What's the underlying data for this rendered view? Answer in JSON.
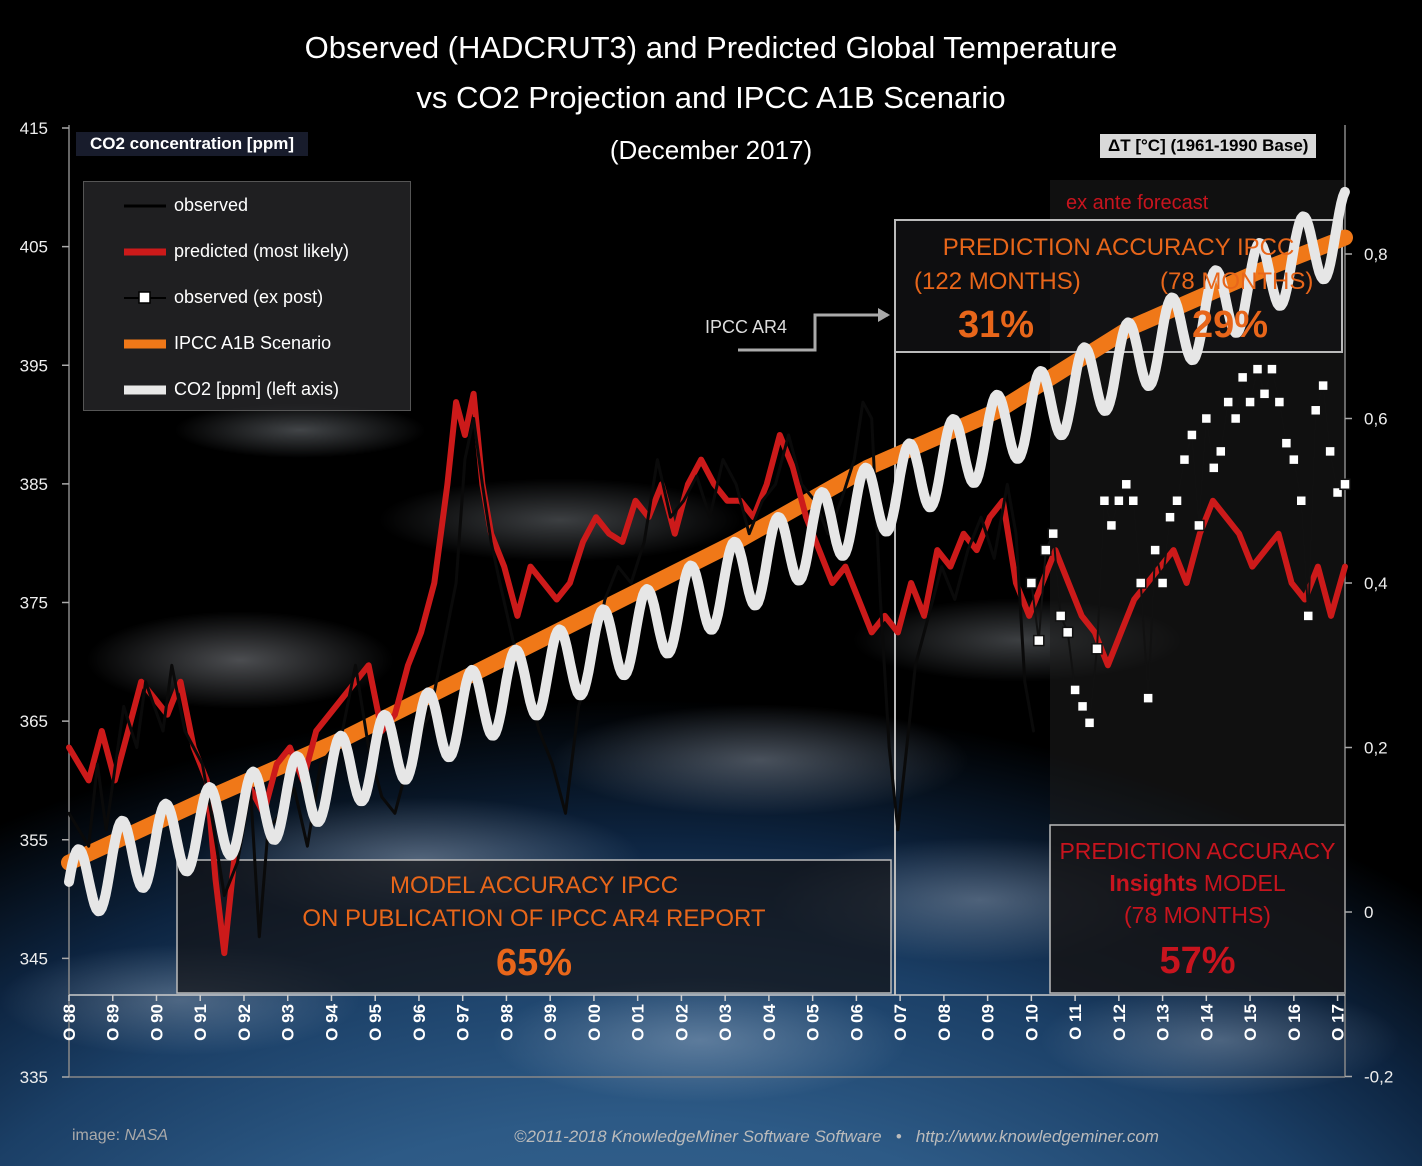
{
  "title_line1": "Observed (HADCRUT3) and Predicted Global Temperature",
  "title_line2": "vs CO2 Projection and IPCC A1B Scenario",
  "subtitle": "(December 2017)",
  "left_axis_label": "CO2 concentration [ppm]",
  "right_axis_label": "ΔT [°C] (1961-1990 Base)",
  "legend": {
    "observed": "observed",
    "predicted": "predicted (most likely)",
    "observed_ex_post": "observed (ex post)",
    "ipcc_a1b": "IPCC A1B Scenario",
    "co2": "CO2 [ppm] (left axis)"
  },
  "annotations": {
    "ipcc_ar4": "IPCC AR4",
    "ex_ante": "ex ante forecast",
    "pred_ipcc_title": "PREDICTION ACCURACY IPCC",
    "pred_ipcc_left_label": "(122 MONTHS)",
    "pred_ipcc_right_label": "(78 MONTHS)",
    "pred_ipcc_left_value": "31%",
    "pred_ipcc_right_value": "29%",
    "model_line1": "MODEL ACCURACY IPCC",
    "model_line2": "ON PUBLICATION OF IPCC AR4 REPORT",
    "model_value": "65%",
    "insights_line1": "PREDICTION ACCURACY",
    "insights_bold": "Insights",
    "insights_model": " MODEL",
    "insights_months": "(78 MONTHS)",
    "insights_value": "57%"
  },
  "footer": {
    "image_credit_prefix": "image: ",
    "image_credit": "NASA",
    "copyright": "©2011-2018 KnowledgeMiner Software Software   •   http://www.knowledgeminer.com"
  },
  "colors": {
    "observed": "#111111",
    "predicted": "#cc1a1a",
    "ipcc": "#f07818",
    "co2": "#e8e8e8",
    "accent_orange": "#e8661a",
    "accent_red": "#c8141e"
  },
  "chart_data": {
    "type": "line",
    "left_axis": {
      "label": "CO2 concentration [ppm]",
      "min": 335,
      "max": 415,
      "ticks": [
        "335",
        "345",
        "355",
        "365",
        "375",
        "385",
        "395",
        "405",
        "415"
      ]
    },
    "right_axis": {
      "label": "ΔT [°C] (1961-1990 Base)",
      "min": -0.2,
      "max": 0.95,
      "ticks": [
        "-0,2",
        "0",
        "0,2",
        "0,4",
        "0,6",
        "0,8"
      ]
    },
    "x_axis": {
      "start_year": 1988.75,
      "end_year": 2017.92,
      "ticks": [
        "O 88",
        "O 89",
        "O 90",
        "O 91",
        "O 92",
        "O 93",
        "O 94",
        "O 95",
        "O 96",
        "O 97",
        "O 98",
        "O 99",
        "O 00",
        "O 01",
        "O 02",
        "O 03",
        "O 04",
        "O 05",
        "O 06",
        "O 07",
        "O 08",
        "O 09",
        "O 10",
        "O 11",
        "O 12",
        "O 13",
        "O 14",
        "O 15",
        "O 16",
        "O 17"
      ]
    },
    "co2_series": {
      "name": "CO2 [ppm] (left axis)",
      "trend_points": [
        [
          1988.75,
          350.5
        ],
        [
          1990,
          353.5
        ],
        [
          1992,
          356.3
        ],
        [
          1994,
          358.9
        ],
        [
          1996,
          362.4
        ],
        [
          1998,
          366.2
        ],
        [
          2000,
          369.6
        ],
        [
          2002,
          373.0
        ],
        [
          2004,
          377.0
        ],
        [
          2006,
          381.2
        ],
        [
          2008,
          385.3
        ],
        [
          2010,
          389.4
        ],
        [
          2012,
          393.4
        ],
        [
          2014,
          397.6
        ],
        [
          2016,
          402.2
        ],
        [
          2017.92,
          406.5
        ]
      ],
      "seasonal_amplitude": 3.2
    },
    "ipcc_a1b": {
      "name": "IPCC A1B Scenario",
      "points": [
        [
          1988.75,
          0.06
        ],
        [
          1992,
          0.14
        ],
        [
          1995,
          0.21
        ],
        [
          1998,
          0.29
        ],
        [
          2001,
          0.37
        ],
        [
          2004,
          0.45
        ],
        [
          2007,
          0.54
        ],
        [
          2010,
          0.61
        ],
        [
          2013,
          0.71
        ],
        [
          2016,
          0.78
        ],
        [
          2017.92,
          0.82
        ]
      ]
    },
    "observed": {
      "name": "observed",
      "points": [
        [
          1988.75,
          0.12
        ],
        [
          1989.2,
          0.08
        ],
        [
          1989.4,
          0.18
        ],
        [
          1989.6,
          0.1
        ],
        [
          1990.0,
          0.25
        ],
        [
          1990.3,
          0.2
        ],
        [
          1990.5,
          0.28
        ],
        [
          1990.9,
          0.22
        ],
        [
          1991.1,
          0.3
        ],
        [
          1991.4,
          0.22
        ],
        [
          1991.8,
          0.18
        ],
        [
          1992.0,
          0.12
        ],
        [
          1992.3,
          0.02
        ],
        [
          1992.6,
          0.06
        ],
        [
          1992.9,
          0.15
        ],
        [
          1993.1,
          -0.03
        ],
        [
          1993.3,
          0.1
        ],
        [
          1993.6,
          0.12
        ],
        [
          1993.9,
          0.15
        ],
        [
          1994.2,
          0.08
        ],
        [
          1994.5,
          0.18
        ],
        [
          1994.8,
          0.2
        ],
        [
          1995.0,
          0.22
        ],
        [
          1995.3,
          0.3
        ],
        [
          1995.6,
          0.2
        ],
        [
          1995.9,
          0.14
        ],
        [
          1996.2,
          0.12
        ],
        [
          1996.5,
          0.18
        ],
        [
          1996.8,
          0.22
        ],
        [
          1997.0,
          0.24
        ],
        [
          1997.3,
          0.32
        ],
        [
          1997.6,
          0.4
        ],
        [
          1997.8,
          0.55
        ],
        [
          1998.0,
          0.6
        ],
        [
          1998.2,
          0.52
        ],
        [
          1998.4,
          0.45
        ],
        [
          1998.6,
          0.4
        ],
        [
          1998.9,
          0.33
        ],
        [
          1999.2,
          0.28
        ],
        [
          1999.5,
          0.22
        ],
        [
          1999.8,
          0.18
        ],
        [
          2000.1,
          0.12
        ],
        [
          2000.4,
          0.25
        ],
        [
          2000.7,
          0.3
        ],
        [
          2001.0,
          0.38
        ],
        [
          2001.3,
          0.42
        ],
        [
          2001.6,
          0.4
        ],
        [
          2001.9,
          0.45
        ],
        [
          2002.2,
          0.55
        ],
        [
          2002.5,
          0.48
        ],
        [
          2002.8,
          0.5
        ],
        [
          2003.1,
          0.53
        ],
        [
          2003.4,
          0.48
        ],
        [
          2003.7,
          0.55
        ],
        [
          2004.0,
          0.52
        ],
        [
          2004.3,
          0.46
        ],
        [
          2004.6,
          0.5
        ],
        [
          2004.9,
          0.52
        ],
        [
          2005.2,
          0.58
        ],
        [
          2005.5,
          0.52
        ],
        [
          2005.8,
          0.5
        ],
        [
          2006.1,
          0.46
        ],
        [
          2006.4,
          0.5
        ],
        [
          2006.7,
          0.55
        ],
        [
          2006.9,
          0.62
        ],
        [
          2007.1,
          0.6
        ],
        [
          2007.3,
          0.38
        ],
        [
          2007.5,
          0.2
        ],
        [
          2007.7,
          0.1
        ],
        [
          2007.9,
          0.2
        ],
        [
          2008.1,
          0.3
        ],
        [
          2008.4,
          0.36
        ],
        [
          2008.7,
          0.42
        ],
        [
          2009.0,
          0.38
        ],
        [
          2009.3,
          0.44
        ],
        [
          2009.6,
          0.48
        ],
        [
          2009.9,
          0.43
        ],
        [
          2010.2,
          0.52
        ],
        [
          2010.4,
          0.46
        ],
        [
          2010.6,
          0.28
        ],
        [
          2010.8,
          0.22
        ]
      ]
    },
    "predicted": {
      "name": "predicted (most likely)",
      "points": [
        [
          1988.75,
          0.2
        ],
        [
          1989.2,
          0.16
        ],
        [
          1989.5,
          0.22
        ],
        [
          1989.8,
          0.16
        ],
        [
          1990.1,
          0.22
        ],
        [
          1990.4,
          0.28
        ],
        [
          1990.7,
          0.26
        ],
        [
          1991.0,
          0.24
        ],
        [
          1991.3,
          0.28
        ],
        [
          1991.6,
          0.2
        ],
        [
          1991.9,
          0.16
        ],
        [
          1992.1,
          0.04
        ],
        [
          1992.3,
          -0.05
        ],
        [
          1992.6,
          0.1
        ],
        [
          1992.9,
          0.15
        ],
        [
          1993.2,
          0.12
        ],
        [
          1993.5,
          0.18
        ],
        [
          1993.8,
          0.2
        ],
        [
          1994.1,
          0.16
        ],
        [
          1994.4,
          0.22
        ],
        [
          1994.7,
          0.24
        ],
        [
          1995.0,
          0.26
        ],
        [
          1995.3,
          0.28
        ],
        [
          1995.6,
          0.3
        ],
        [
          1995.9,
          0.22
        ],
        [
          1996.2,
          0.24
        ],
        [
          1996.5,
          0.3
        ],
        [
          1996.8,
          0.34
        ],
        [
          1997.1,
          0.4
        ],
        [
          1997.4,
          0.52
        ],
        [
          1997.6,
          0.62
        ],
        [
          1997.8,
          0.58
        ],
        [
          1998.0,
          0.63
        ],
        [
          1998.2,
          0.52
        ],
        [
          1998.4,
          0.46
        ],
        [
          1998.7,
          0.42
        ],
        [
          1999.0,
          0.36
        ],
        [
          1999.3,
          0.42
        ],
        [
          1999.6,
          0.4
        ],
        [
          1999.9,
          0.38
        ],
        [
          2000.2,
          0.4
        ],
        [
          2000.5,
          0.45
        ],
        [
          2000.8,
          0.48
        ],
        [
          2001.1,
          0.46
        ],
        [
          2001.4,
          0.45
        ],
        [
          2001.7,
          0.5
        ],
        [
          2002.0,
          0.48
        ],
        [
          2002.3,
          0.52
        ],
        [
          2002.6,
          0.46
        ],
        [
          2002.9,
          0.52
        ],
        [
          2003.2,
          0.55
        ],
        [
          2003.5,
          0.52
        ],
        [
          2003.8,
          0.5
        ],
        [
          2004.1,
          0.5
        ],
        [
          2004.4,
          0.48
        ],
        [
          2004.7,
          0.52
        ],
        [
          2005.0,
          0.58
        ],
        [
          2005.3,
          0.54
        ],
        [
          2005.6,
          0.48
        ],
        [
          2005.9,
          0.44
        ],
        [
          2006.2,
          0.4
        ],
        [
          2006.5,
          0.42
        ],
        [
          2006.8,
          0.38
        ],
        [
          2007.1,
          0.34
        ],
        [
          2007.4,
          0.36
        ],
        [
          2007.7,
          0.34
        ],
        [
          2008.0,
          0.4
        ],
        [
          2008.3,
          0.36
        ],
        [
          2008.6,
          0.44
        ],
        [
          2008.9,
          0.42
        ],
        [
          2009.2,
          0.46
        ],
        [
          2009.5,
          0.44
        ],
        [
          2009.8,
          0.48
        ],
        [
          2010.1,
          0.5
        ],
        [
          2010.4,
          0.4
        ],
        [
          2010.7,
          0.36
        ],
        [
          2011.0,
          0.4
        ],
        [
          2011.3,
          0.44
        ],
        [
          2011.6,
          0.4
        ],
        [
          2011.9,
          0.36
        ],
        [
          2012.2,
          0.34
        ],
        [
          2012.5,
          0.3
        ],
        [
          2012.8,
          0.34
        ],
        [
          2013.1,
          0.38
        ],
        [
          2013.4,
          0.4
        ],
        [
          2013.7,
          0.42
        ],
        [
          2014.0,
          0.44
        ],
        [
          2014.3,
          0.4
        ],
        [
          2014.6,
          0.46
        ],
        [
          2014.9,
          0.5
        ],
        [
          2015.2,
          0.48
        ],
        [
          2015.5,
          0.46
        ],
        [
          2015.8,
          0.42
        ],
        [
          2016.1,
          0.44
        ],
        [
          2016.4,
          0.46
        ],
        [
          2016.7,
          0.4
        ],
        [
          2017.0,
          0.38
        ],
        [
          2017.3,
          0.42
        ],
        [
          2017.6,
          0.36
        ],
        [
          2017.92,
          0.42
        ]
      ]
    },
    "observed_ex_post": {
      "name": "observed (ex post)",
      "points": [
        [
          2010.75,
          0.4
        ],
        [
          2010.92,
          0.33
        ],
        [
          2011.08,
          0.44
        ],
        [
          2011.25,
          0.46
        ],
        [
          2011.42,
          0.36
        ],
        [
          2011.58,
          0.34
        ],
        [
          2011.75,
          0.27
        ],
        [
          2011.92,
          0.25
        ],
        [
          2012.08,
          0.23
        ],
        [
          2012.25,
          0.32
        ],
        [
          2012.42,
          0.5
        ],
        [
          2012.58,
          0.47
        ],
        [
          2012.75,
          0.5
        ],
        [
          2012.92,
          0.52
        ],
        [
          2013.08,
          0.5
        ],
        [
          2013.25,
          0.4
        ],
        [
          2013.42,
          0.26
        ],
        [
          2013.58,
          0.44
        ],
        [
          2013.75,
          0.4
        ],
        [
          2013.92,
          0.48
        ],
        [
          2014.08,
          0.5
        ],
        [
          2014.25,
          0.55
        ],
        [
          2014.42,
          0.58
        ],
        [
          2014.58,
          0.47
        ],
        [
          2014.75,
          0.6
        ],
        [
          2014.92,
          0.54
        ],
        [
          2015.08,
          0.56
        ],
        [
          2015.25,
          0.62
        ],
        [
          2015.42,
          0.6
        ],
        [
          2015.58,
          0.65
        ],
        [
          2015.75,
          0.62
        ],
        [
          2015.92,
          0.66
        ],
        [
          2016.08,
          0.63
        ],
        [
          2016.25,
          0.66
        ],
        [
          2016.42,
          0.62
        ],
        [
          2016.58,
          0.57
        ],
        [
          2016.75,
          0.55
        ],
        [
          2016.92,
          0.5
        ],
        [
          2017.08,
          0.36
        ],
        [
          2017.25,
          0.61
        ],
        [
          2017.42,
          0.64
        ],
        [
          2017.58,
          0.56
        ],
        [
          2017.75,
          0.51
        ],
        [
          2017.92,
          0.52
        ]
      ]
    }
  }
}
